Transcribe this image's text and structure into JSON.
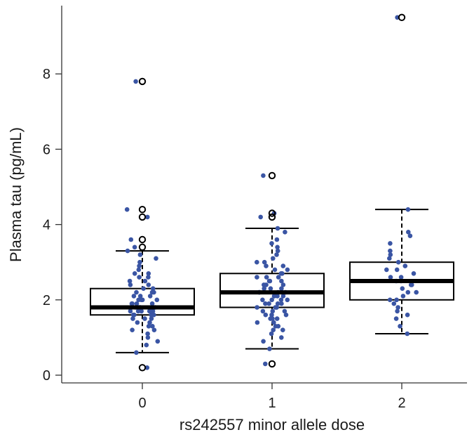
{
  "chart_data": {
    "type": "box",
    "title": "",
    "xlabel": "rs242557 minor allele dose",
    "ylabel": "Plasma tau (pg/mL)",
    "ylim": [
      0,
      9.8
    ],
    "yticks": [
      "0",
      "2",
      "4",
      "6",
      "8"
    ],
    "categories": [
      "0",
      "1",
      "2"
    ],
    "colors": {
      "points": "#3a55a4",
      "box": "#000000",
      "outlier": "#000000"
    },
    "boxes": [
      {
        "category": "0",
        "whisker_low": 0.6,
        "q1": 1.6,
        "median": 1.8,
        "q3": 2.3,
        "whisker_high": 3.3,
        "outliers": [
          0.2,
          3.4,
          3.6,
          4.2,
          4.4,
          7.8
        ]
      },
      {
        "category": "1",
        "whisker_low": 0.7,
        "q1": 1.8,
        "median": 2.2,
        "q3": 2.7,
        "whisker_high": 3.9,
        "outliers": [
          0.3,
          4.2,
          4.3,
          5.3
        ]
      },
      {
        "category": "2",
        "whisker_low": 1.1,
        "q1": 2.0,
        "median": 2.5,
        "q3": 3.0,
        "whisker_high": 4.4,
        "outliers": [
          9.5
        ]
      }
    ],
    "points": [
      {
        "category": "0",
        "values": [
          0.2,
          0.6,
          0.8,
          0.9,
          1.0,
          1.1,
          1.2,
          1.2,
          1.3,
          1.3,
          1.4,
          1.4,
          1.5,
          1.5,
          1.5,
          1.6,
          1.6,
          1.6,
          1.6,
          1.7,
          1.7,
          1.7,
          1.7,
          1.7,
          1.8,
          1.8,
          1.8,
          1.8,
          1.8,
          1.8,
          1.9,
          1.9,
          1.9,
          1.9,
          2.0,
          2.0,
          2.0,
          2.0,
          2.1,
          2.1,
          2.1,
          2.2,
          2.2,
          2.2,
          2.3,
          2.3,
          2.4,
          2.4,
          2.5,
          2.5,
          2.6,
          2.6,
          2.7,
          2.7,
          2.8,
          2.9,
          3.0,
          3.1,
          3.2,
          3.3,
          3.4,
          3.6,
          4.2,
          4.4,
          7.8
        ]
      },
      {
        "category": "1",
        "values": [
          0.3,
          0.7,
          0.9,
          1.0,
          1.1,
          1.2,
          1.2,
          1.3,
          1.3,
          1.4,
          1.4,
          1.5,
          1.5,
          1.5,
          1.6,
          1.6,
          1.6,
          1.7,
          1.7,
          1.7,
          1.8,
          1.8,
          1.8,
          1.8,
          1.9,
          1.9,
          1.9,
          1.9,
          2.0,
          2.0,
          2.0,
          2.0,
          2.1,
          2.1,
          2.1,
          2.1,
          2.2,
          2.2,
          2.2,
          2.2,
          2.3,
          2.3,
          2.3,
          2.4,
          2.4,
          2.4,
          2.5,
          2.5,
          2.5,
          2.6,
          2.6,
          2.6,
          2.7,
          2.7,
          2.8,
          2.8,
          2.9,
          2.9,
          3.0,
          3.0,
          3.1,
          3.2,
          3.3,
          3.4,
          3.5,
          3.6,
          3.8,
          3.9,
          4.2,
          4.3,
          5.3
        ]
      },
      {
        "category": "2",
        "values": [
          1.1,
          1.3,
          1.5,
          1.6,
          1.7,
          1.8,
          1.9,
          2.0,
          2.0,
          2.1,
          2.2,
          2.2,
          2.3,
          2.4,
          2.4,
          2.5,
          2.5,
          2.6,
          2.6,
          2.7,
          2.8,
          2.8,
          2.9,
          3.0,
          3.1,
          3.2,
          3.3,
          3.5,
          3.7,
          3.8,
          4.4,
          9.5
        ]
      }
    ]
  }
}
